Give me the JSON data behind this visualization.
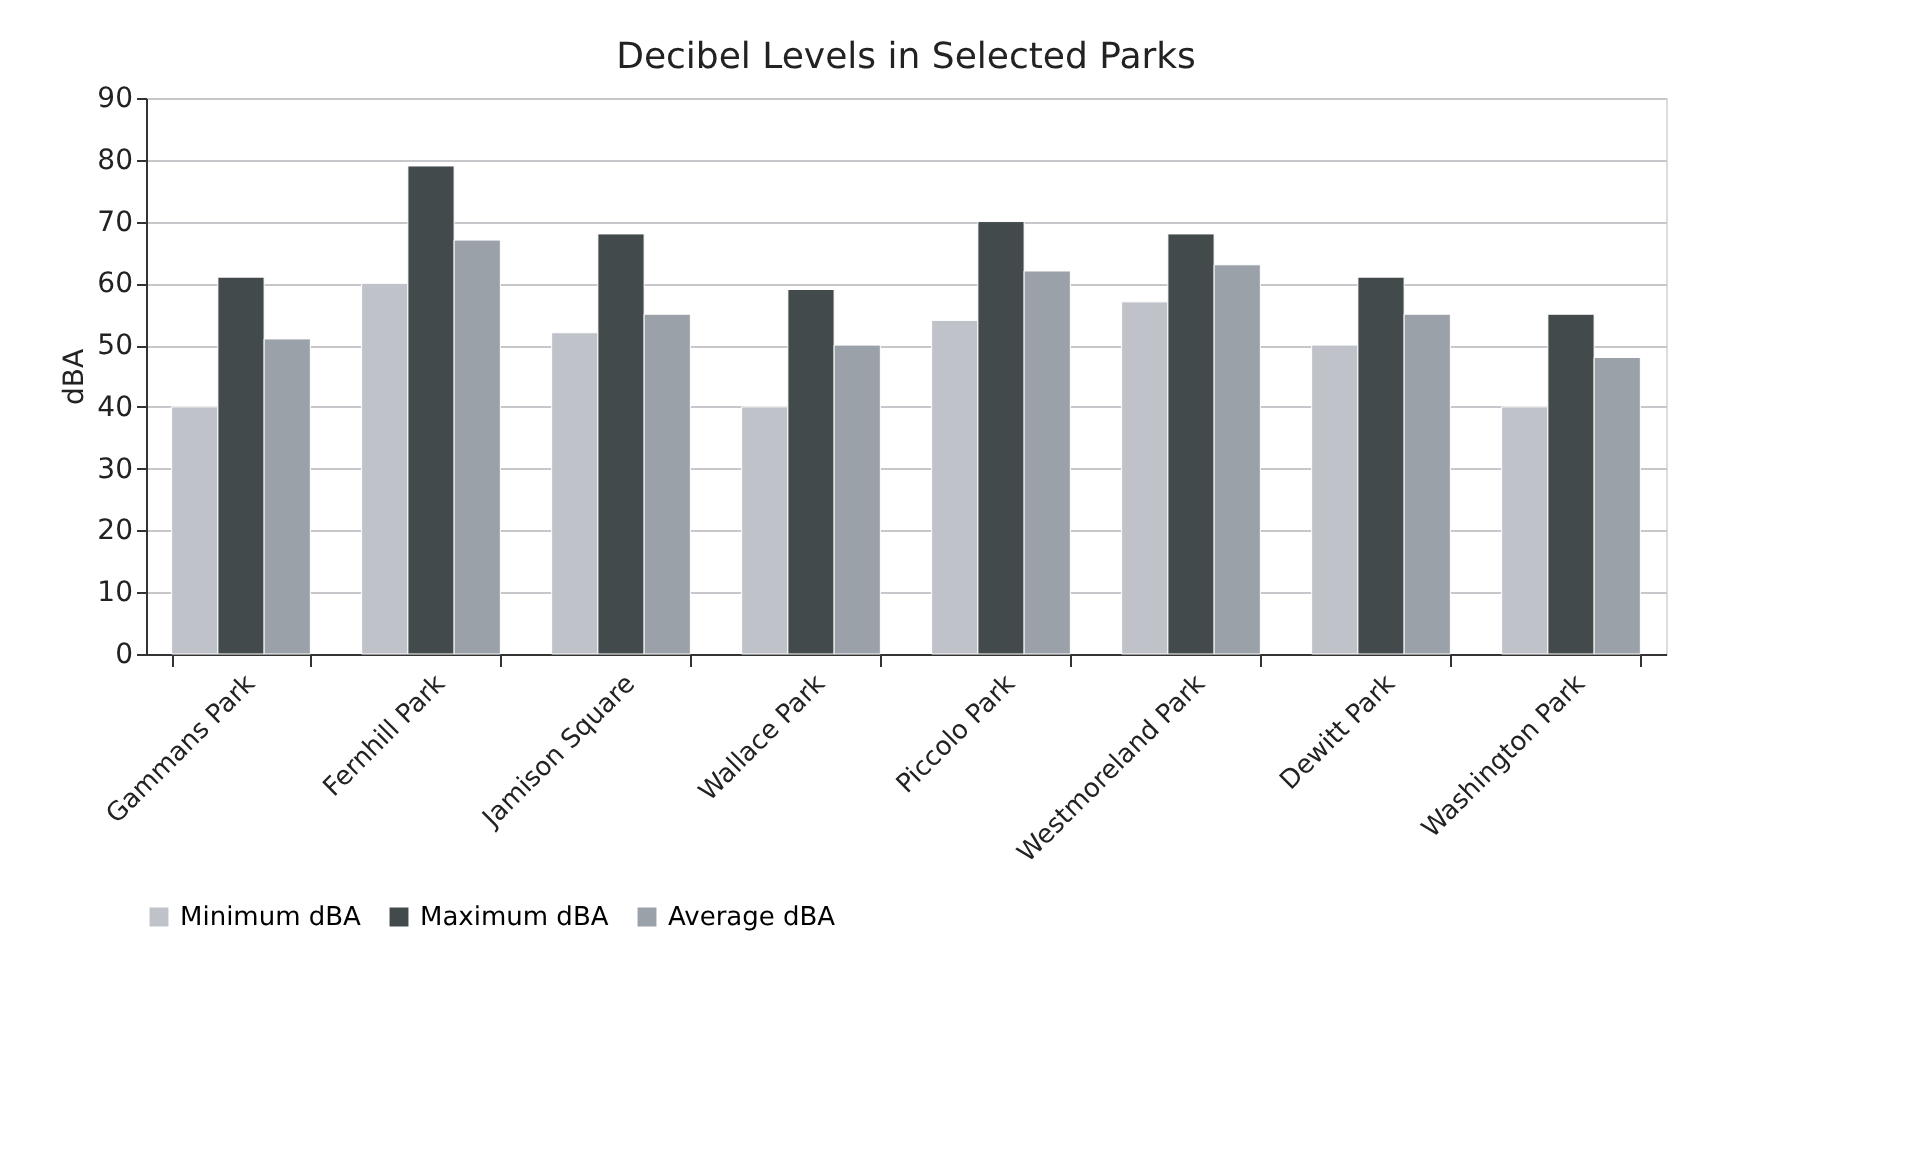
{
  "chart_data": {
    "type": "bar",
    "title": "Decibel Levels in Selected Parks",
    "ylabel": "dBA",
    "categories": [
      "Gammans Park",
      "Fernhill Park",
      "Jamison Square",
      "Wallace Park",
      "Piccolo Park",
      "Westmoreland Park",
      "Dewitt Park",
      "Washington Park"
    ],
    "series": [
      {
        "name": "Minimum dBA",
        "color": "#bfc2c9",
        "values": [
          40,
          60,
          52,
          40,
          54,
          57,
          50,
          40
        ]
      },
      {
        "name": "Maximum dBA",
        "color": "#434a4c",
        "values": [
          61,
          79,
          68,
          59,
          70,
          68,
          61,
          55
        ]
      },
      {
        "name": "Average dBA",
        "color": "#9ba1a8",
        "values": [
          51,
          67,
          55,
          50,
          62,
          63,
          55,
          48
        ]
      }
    ],
    "ylim": [
      0,
      90
    ],
    "yticks": [
      0,
      10,
      20,
      30,
      40,
      50,
      60,
      70,
      80,
      90
    ],
    "grid": "y",
    "legend": "bottom"
  }
}
